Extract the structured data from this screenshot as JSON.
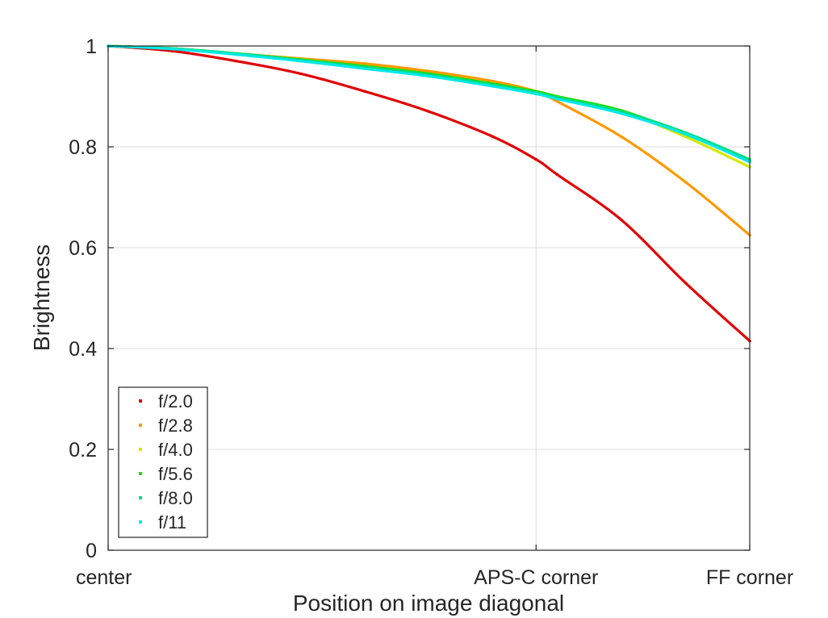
{
  "chart_data": {
    "type": "scatter",
    "title": "",
    "xlabel": "Position on image diagonal",
    "ylabel": "Brightness",
    "xlim": [
      0,
      1
    ],
    "ylim": [
      0,
      1
    ],
    "grid": true,
    "legend_position": "bottom-left",
    "x_ticks": [
      {
        "value": 0,
        "label": "center"
      },
      {
        "value": 0.667,
        "label": "APS-C corner"
      },
      {
        "value": 1,
        "label": "FF corner"
      }
    ],
    "y_ticks": [
      {
        "value": 0,
        "label": "0"
      },
      {
        "value": 0.2,
        "label": "0.2"
      },
      {
        "value": 0.4,
        "label": "0.4"
      },
      {
        "value": 0.6,
        "label": "0.6"
      },
      {
        "value": 0.8,
        "label": "0.8"
      },
      {
        "value": 1,
        "label": "1"
      }
    ],
    "x": [
      0,
      0.1,
      0.2,
      0.3,
      0.4,
      0.5,
      0.6,
      0.667,
      0.7,
      0.8,
      0.9,
      1.0
    ],
    "series": [
      {
        "name": "f/2.0",
        "color": "#e00000",
        "values": [
          1.0,
          0.99,
          0.97,
          0.945,
          0.91,
          0.87,
          0.82,
          0.775,
          0.745,
          0.655,
          0.53,
          0.415
        ]
      },
      {
        "name": "f/2.8",
        "color": "#ff9900",
        "values": [
          1.0,
          0.995,
          0.985,
          0.975,
          0.965,
          0.95,
          0.93,
          0.91,
          0.89,
          0.82,
          0.73,
          0.625
        ]
      },
      {
        "name": "f/4.0",
        "color": "#d4e800",
        "values": [
          1.0,
          0.995,
          0.985,
          0.973,
          0.96,
          0.945,
          0.925,
          0.91,
          0.9,
          0.87,
          0.82,
          0.76
        ]
      },
      {
        "name": "f/5.6",
        "color": "#22dd00",
        "values": [
          1.0,
          0.995,
          0.985,
          0.973,
          0.96,
          0.945,
          0.925,
          0.91,
          0.9,
          0.872,
          0.825,
          0.772
        ]
      },
      {
        "name": "f/8.0",
        "color": "#00dd77",
        "values": [
          1.0,
          0.995,
          0.985,
          0.972,
          0.958,
          0.943,
          0.923,
          0.908,
          0.898,
          0.87,
          0.828,
          0.775
        ]
      },
      {
        "name": "f/11",
        "color": "#00e8e8",
        "values": [
          1.0,
          0.994,
          0.983,
          0.97,
          0.955,
          0.94,
          0.92,
          0.905,
          0.895,
          0.866,
          0.825,
          0.77
        ]
      }
    ]
  }
}
